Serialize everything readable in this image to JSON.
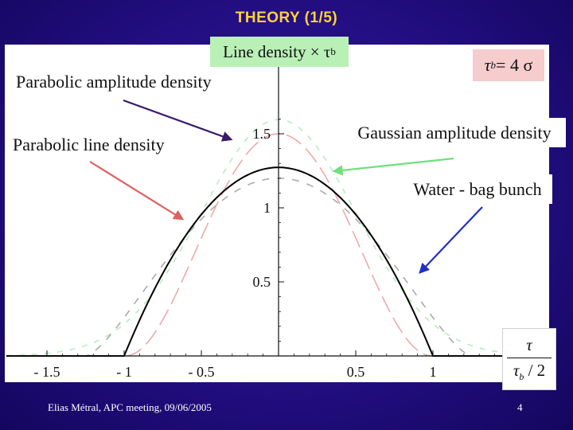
{
  "slide": {
    "title": "THEORY (1/5)",
    "footer_left": "Elias Métral, APC meeting, 09/06/2005",
    "page_number": "4"
  },
  "chart_data": {
    "type": "line",
    "ylabel_text": "Line density × τ",
    "ylabel_subscript": "b",
    "xlabel_numerator": "τ",
    "xlabel_denominator_symbol": "τ",
    "xlabel_denominator_subscript": "b",
    "xlabel_denominator_suffix": " / 2",
    "parameter": {
      "symbol": "τ",
      "subscript": "b",
      "text": " = 4 σ"
    },
    "xlim": [
      -1.5,
      1.5
    ],
    "ylim": [
      0,
      1.6
    ],
    "x_ticks": [
      {
        "value": -1.5,
        "label": "- 1.5"
      },
      {
        "value": -1,
        "label": "- 1"
      },
      {
        "value": -0.5,
        "label": "- 0.5"
      },
      {
        "value": 0.5,
        "label": "0.5"
      },
      {
        "value": 1,
        "label": "1"
      }
    ],
    "y_ticks": [
      {
        "value": 0.5,
        "label": "0.5"
      },
      {
        "value": 1,
        "label": "1"
      },
      {
        "value": 1.5,
        "label": "1.5"
      }
    ],
    "series": [
      {
        "name": "Water - bag bunch",
        "model": "parabolic",
        "peak": 1.273,
        "halfwidth": 1.0,
        "color": "#000000",
        "dash": ""
      },
      {
        "name": "Parabolic amplitude density",
        "model": "parabolic-amplitude",
        "peak": 1.5,
        "halfwidth": 1.0,
        "color": "#f0a8a8",
        "dash": "22 8"
      },
      {
        "name": "Parabolic line density",
        "model": "parabolic-line",
        "peak": 1.2,
        "halfwidth": 1.25,
        "color": "#aaaaaa",
        "dash": "9 10"
      },
      {
        "name": "Gaussian amplitude density",
        "model": "gaussian",
        "peak": 1.596,
        "sigma": 0.5,
        "color": "#b6eebf",
        "dash": "7 9"
      }
    ],
    "annotations": [
      {
        "id": "parabolic-amplitude",
        "text": "Parabolic amplitude density",
        "arrow_color": "#3a1a6a"
      },
      {
        "id": "parabolic-line",
        "text": "Parabolic line density",
        "arrow_color": "#e06060"
      },
      {
        "id": "gaussian-amplitude",
        "text": "Gaussian amplitude density",
        "arrow_color": "#6fe07a"
      },
      {
        "id": "water-bag",
        "text": "Water - bag bunch",
        "arrow_color": "#2030c0"
      }
    ]
  }
}
